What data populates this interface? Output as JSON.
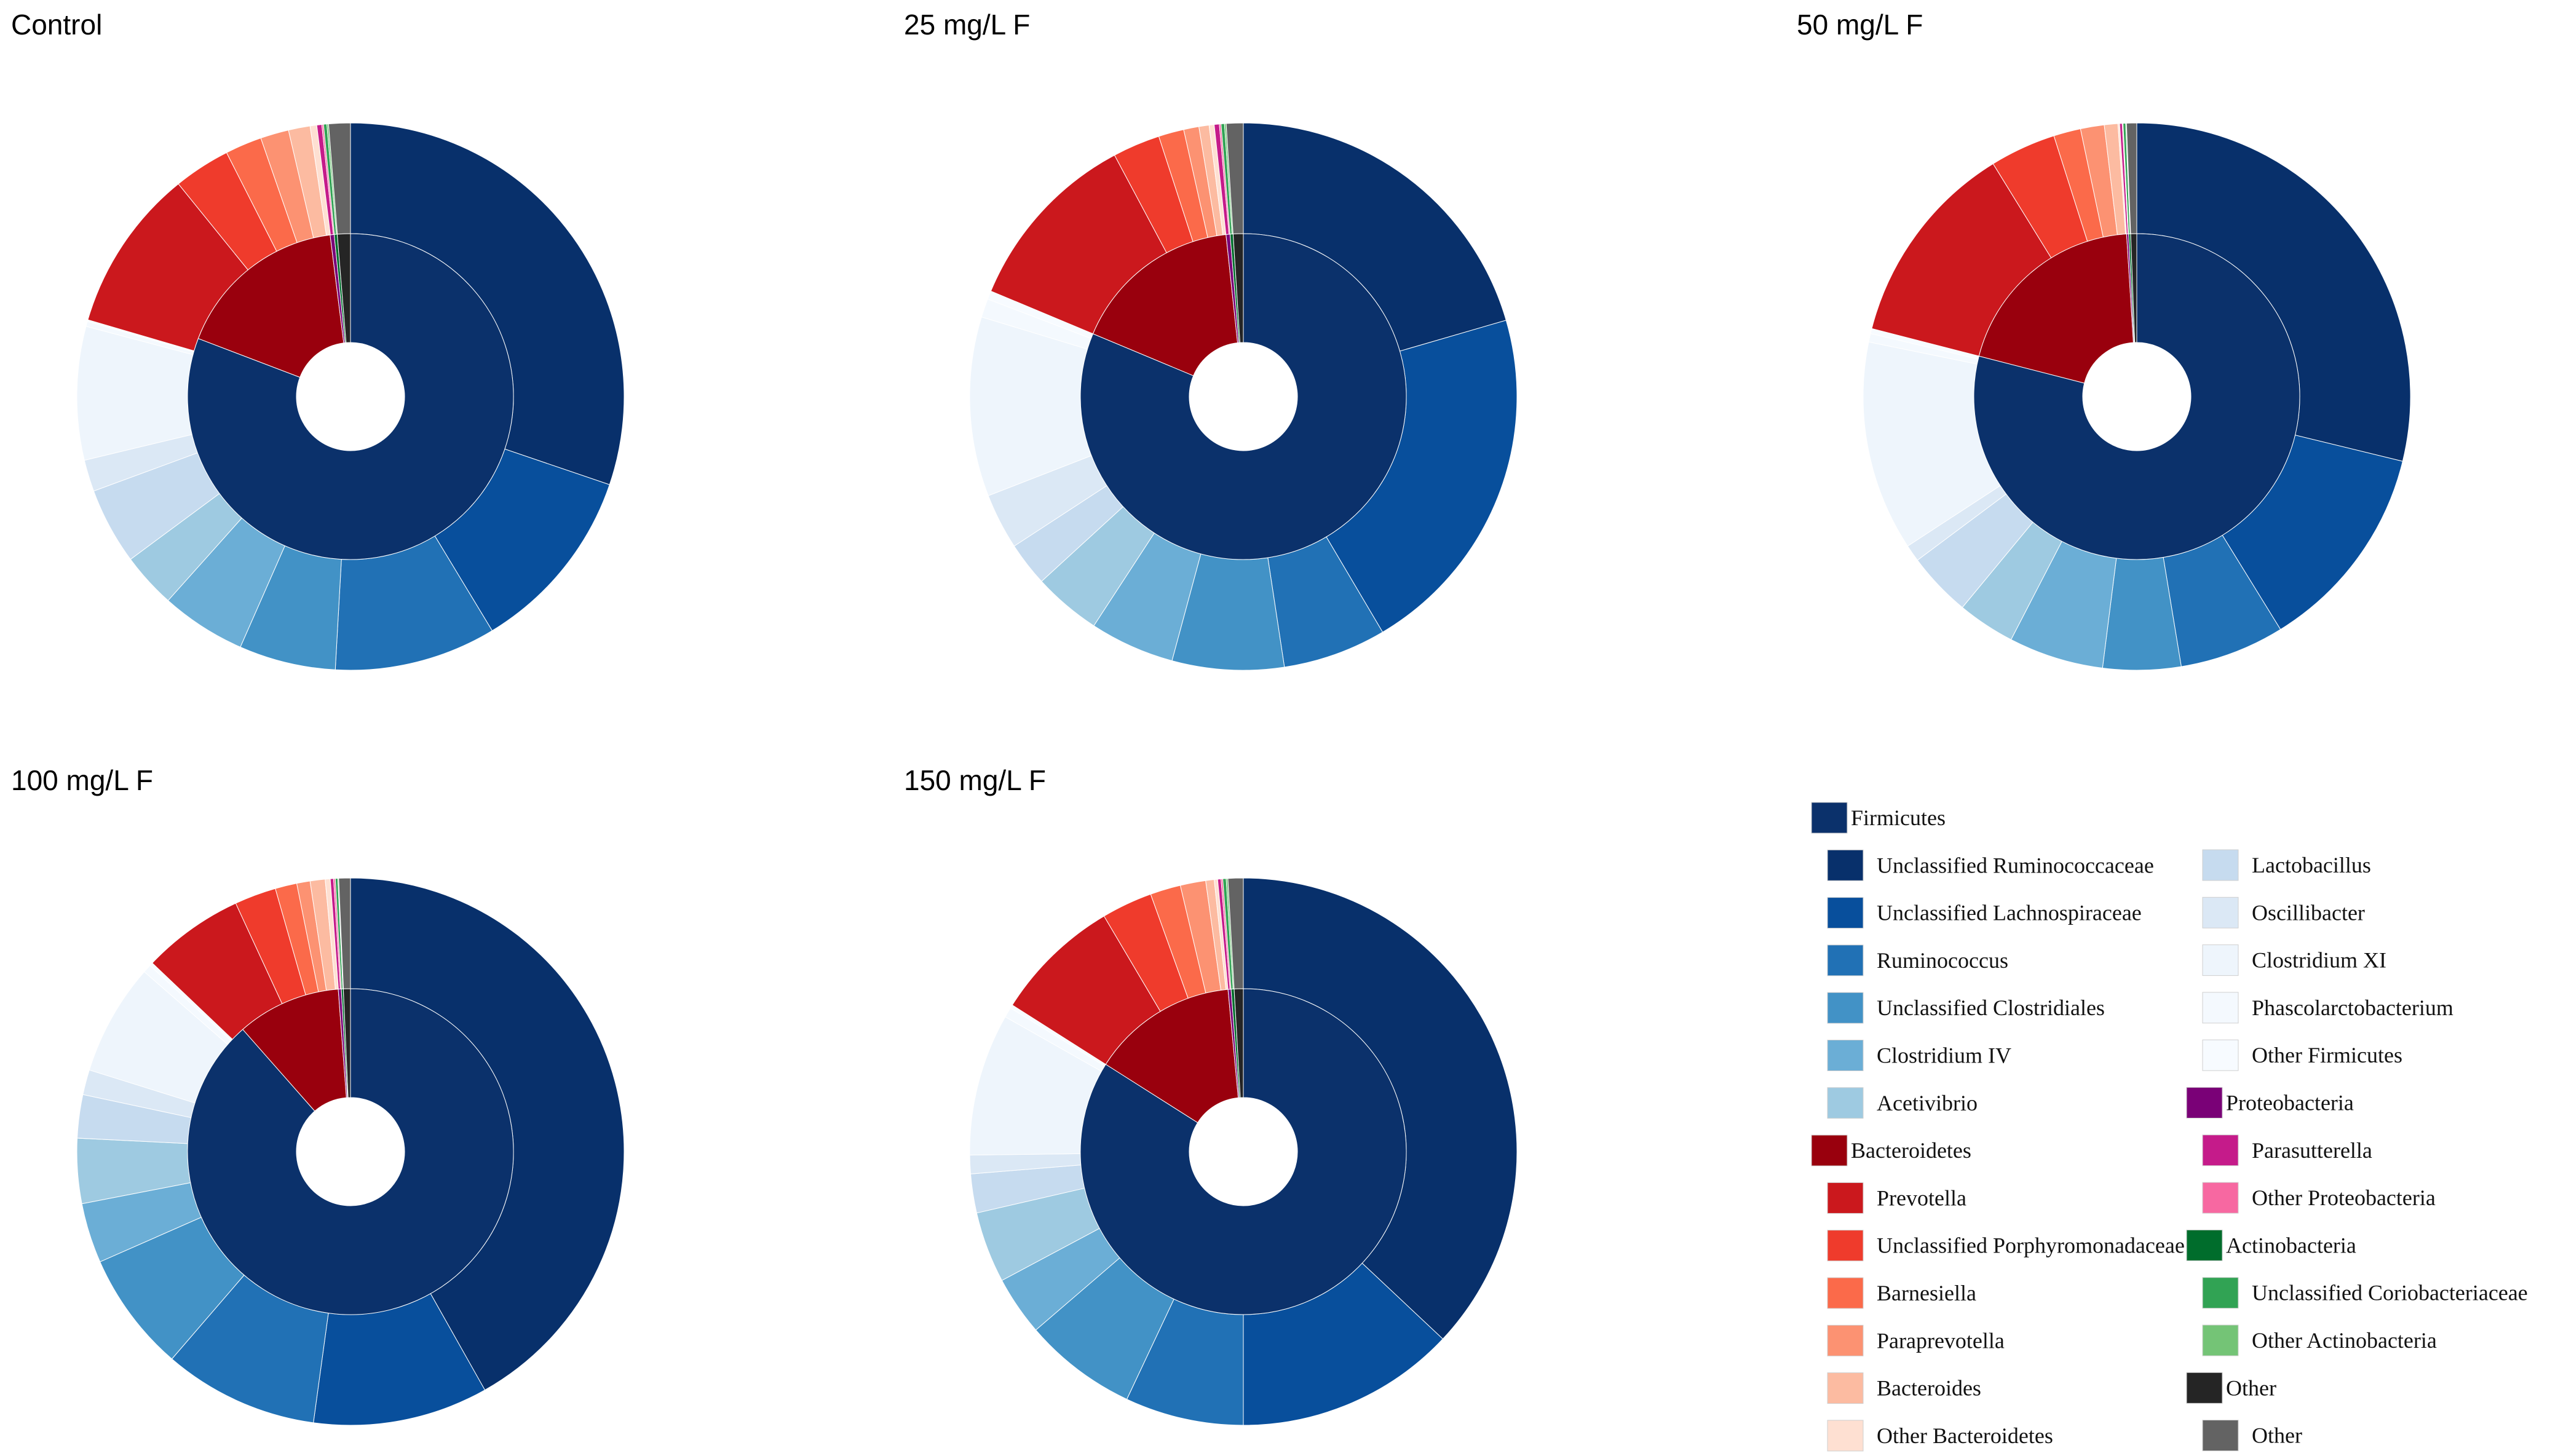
{
  "colors": {
    "Firmicutes": "#0b316b",
    "Unclassified Ruminococcaceae": "#08306b",
    "Unclassified Lachnospiraceae": "#084f9c",
    "Ruminococcus": "#2171b5",
    "Unclassified Clostridiales": "#4292c6",
    "Clostridium IV": "#6baed6",
    "Acetivibrio": "#9ecae1",
    "Lactobacillus": "#c6dbef",
    "Oscillibacter": "#dbe8f5",
    "Clostridium XI": "#eef5fc",
    "Phascolarctobacterium": "#f4f9fe",
    "Other Firmicutes": "#f7fbff",
    "Bacteroidetes": "#99000d",
    "Prevotella": "#cb181d",
    "Unclassified Porphyromonadaceae": "#ef3b2c",
    "Barnesiella": "#fb6a4a",
    "Paraprevotella": "#fc9272",
    "Bacteroides": "#fcbba1",
    "Other Bacteroidetes": "#fee0d2",
    "Proteobacteria": "#7a0177",
    "Parasutterella": "#c51b8a",
    "Other Proteobacteria": "#f768a1",
    "Actinobacteria": "#006d2c",
    "Unclassified Coriobacteriaceae": "#31a354",
    "Other Actinobacteria": "#74c476",
    "Other phylum": "#252525",
    "Other genus": "#636363"
  },
  "chart_data": [
    {
      "type": "pie",
      "title": "Control",
      "inner": [
        {
          "name": "Firmicutes",
          "value": 80.8
        },
        {
          "name": "Bacteroidetes",
          "value": 17.2
        },
        {
          "name": "Proteobacteria",
          "value": 0.4
        },
        {
          "name": "Actinobacteria",
          "value": 0.3
        },
        {
          "name": "Other",
          "value": 1.3
        }
      ],
      "outer": [
        {
          "name": "Unclassified Ruminococcaceae",
          "value": 30.7
        },
        {
          "name": "Unclassified Lachnospiraceae",
          "value": 11.3
        },
        {
          "name": "Ruminococcus",
          "value": 9.7
        },
        {
          "name": "Unclassified Clostridiales",
          "value": 5.8
        },
        {
          "name": "Clostridium IV",
          "value": 5.1
        },
        {
          "name": "Acetivibrio",
          "value": 3.3
        },
        {
          "name": "Lactobacillus",
          "value": 4.6
        },
        {
          "name": "Oscillibacter",
          "value": 1.9
        },
        {
          "name": "Clostridium XI",
          "value": 8.0
        },
        {
          "name": "Phascolarctobacterium",
          "value": 0.3
        },
        {
          "name": "Other Firmicutes",
          "value": 0.1
        },
        {
          "name": "Prevotella",
          "value": 9.8
        },
        {
          "name": "Unclassified Porphyromonadaceae",
          "value": 3.4
        },
        {
          "name": "Barnesiella",
          "value": 2.2
        },
        {
          "name": "Paraprevotella",
          "value": 1.7
        },
        {
          "name": "Bacteroides",
          "value": 1.3
        },
        {
          "name": "Other Bacteroidetes",
          "value": 0.4
        },
        {
          "name": "Parasutterella",
          "value": 0.3
        },
        {
          "name": "Other Proteobacteria",
          "value": 0.1
        },
        {
          "name": "Unclassified Coriobacteriaceae",
          "value": 0.2
        },
        {
          "name": "Other Actinobacteria",
          "value": 0.1
        },
        {
          "name": "Other",
          "value": 1.3
        }
      ]
    },
    {
      "type": "pie",
      "title": "25 mg/L F",
      "inner": [
        {
          "name": "Firmicutes",
          "value": 81.3
        },
        {
          "name": "Bacteroidetes",
          "value": 17.0
        },
        {
          "name": "Proteobacteria",
          "value": 0.4
        },
        {
          "name": "Actinobacteria",
          "value": 0.3
        },
        {
          "name": "Other",
          "value": 1.0
        }
      ],
      "outer": [
        {
          "name": "Unclassified Ruminococcaceae",
          "value": 20.5
        },
        {
          "name": "Unclassified Lachnospiraceae",
          "value": 21.0
        },
        {
          "name": "Ruminococcus",
          "value": 6.1
        },
        {
          "name": "Unclassified Clostridiales",
          "value": 6.6
        },
        {
          "name": "Clostridium IV",
          "value": 5.0
        },
        {
          "name": "Acetivibrio",
          "value": 4.0
        },
        {
          "name": "Lactobacillus",
          "value": 2.6
        },
        {
          "name": "Oscillibacter",
          "value": 3.3
        },
        {
          "name": "Clostridium XI",
          "value": 10.6
        },
        {
          "name": "Phascolarctobacterium",
          "value": 1.1
        },
        {
          "name": "Other Firmicutes",
          "value": 0.5
        },
        {
          "name": "Prevotella",
          "value": 10.9
        },
        {
          "name": "Unclassified Porphyromonadaceae",
          "value": 2.8
        },
        {
          "name": "Barnesiella",
          "value": 1.5
        },
        {
          "name": "Paraprevotella",
          "value": 0.9
        },
        {
          "name": "Bacteroides",
          "value": 0.6
        },
        {
          "name": "Other Bacteroidetes",
          "value": 0.3
        },
        {
          "name": "Parasutterella",
          "value": 0.3
        },
        {
          "name": "Other Proteobacteria",
          "value": 0.1
        },
        {
          "name": "Unclassified Coriobacteriaceae",
          "value": 0.2
        },
        {
          "name": "Other Actinobacteria",
          "value": 0.1
        },
        {
          "name": "Other",
          "value": 1.0
        }
      ]
    },
    {
      "type": "pie",
      "title": "50 mg/L F",
      "inner": [
        {
          "name": "Firmicutes",
          "value": 79.0
        },
        {
          "name": "Bacteroidetes",
          "value": 20.0
        },
        {
          "name": "Proteobacteria",
          "value": 0.2
        },
        {
          "name": "Actinobacteria",
          "value": 0.2
        },
        {
          "name": "Other",
          "value": 0.6
        }
      ],
      "outer": [
        {
          "name": "Unclassified Ruminococcaceae",
          "value": 28.8
        },
        {
          "name": "Unclassified Lachnospiraceae",
          "value": 12.4
        },
        {
          "name": "Ruminococcus",
          "value": 6.2
        },
        {
          "name": "Unclassified Clostridiales",
          "value": 4.6
        },
        {
          "name": "Clostridium IV",
          "value": 5.6
        },
        {
          "name": "Acetivibrio",
          "value": 3.4
        },
        {
          "name": "Lactobacillus",
          "value": 3.8
        },
        {
          "name": "Oscillibacter",
          "value": 1.0
        },
        {
          "name": "Clostridium XI",
          "value": 12.4
        },
        {
          "name": "Phascolarctobacterium",
          "value": 0.5
        },
        {
          "name": "Other Firmicutes",
          "value": 0.3
        },
        {
          "name": "Prevotella",
          "value": 12.2
        },
        {
          "name": "Unclassified Porphyromonadaceae",
          "value": 3.9
        },
        {
          "name": "Barnesiella",
          "value": 1.6
        },
        {
          "name": "Paraprevotella",
          "value": 1.4
        },
        {
          "name": "Bacteroides",
          "value": 0.8
        },
        {
          "name": "Other Bacteroidetes",
          "value": 0.1
        },
        {
          "name": "Parasutterella",
          "value": 0.15
        },
        {
          "name": "Other Proteobacteria",
          "value": 0.05
        },
        {
          "name": "Unclassified Coriobacteriaceae",
          "value": 0.15
        },
        {
          "name": "Other Actinobacteria",
          "value": 0.05
        },
        {
          "name": "Other",
          "value": 0.6
        }
      ]
    },
    {
      "type": "pie",
      "title": "100 mg/L F",
      "inner": [
        {
          "name": "Firmicutes",
          "value": 88.5
        },
        {
          "name": "Bacteroidetes",
          "value": 10.3
        },
        {
          "name": "Proteobacteria",
          "value": 0.3
        },
        {
          "name": "Actinobacteria",
          "value": 0.2
        },
        {
          "name": "Other",
          "value": 0.7
        }
      ],
      "outer": [
        {
          "name": "Unclassified Ruminococcaceae",
          "value": 42.5
        },
        {
          "name": "Unclassified Lachnospiraceae",
          "value": 10.5
        },
        {
          "name": "Ruminococcus",
          "value": 9.3
        },
        {
          "name": "Unclassified Clostridiales",
          "value": 7.2
        },
        {
          "name": "Clostridium IV",
          "value": 3.6
        },
        {
          "name": "Acetivibrio",
          "value": 3.9
        },
        {
          "name": "Lactobacillus",
          "value": 2.6
        },
        {
          "name": "Oscillibacter",
          "value": 1.5
        },
        {
          "name": "Clostridium XI",
          "value": 6.7
        },
        {
          "name": "Phascolarctobacterium",
          "value": 0.5
        },
        {
          "name": "Other Firmicutes",
          "value": 0.2
        },
        {
          "name": "Prevotella",
          "value": 6.1
        },
        {
          "name": "Unclassified Porphyromonadaceae",
          "value": 2.5
        },
        {
          "name": "Barnesiella",
          "value": 1.3
        },
        {
          "name": "Paraprevotella",
          "value": 0.8
        },
        {
          "name": "Bacteroides",
          "value": 0.9
        },
        {
          "name": "Other Bacteroidetes",
          "value": 0.3
        },
        {
          "name": "Parasutterella",
          "value": 0.2
        },
        {
          "name": "Other Proteobacteria",
          "value": 0.1
        },
        {
          "name": "Unclassified Coriobacteriaceae",
          "value": 0.15
        },
        {
          "name": "Other Actinobacteria",
          "value": 0.05
        },
        {
          "name": "Other",
          "value": 0.7
        }
      ]
    },
    {
      "type": "pie",
      "title": "150 mg/L F",
      "inner": [
        {
          "name": "Firmicutes",
          "value": 84.0
        },
        {
          "name": "Bacteroidetes",
          "value": 14.5
        },
        {
          "name": "Proteobacteria",
          "value": 0.3
        },
        {
          "name": "Actinobacteria",
          "value": 0.3
        },
        {
          "name": "Other",
          "value": 0.9
        }
      ],
      "outer": [
        {
          "name": "Unclassified Ruminococcaceae",
          "value": 37.0
        },
        {
          "name": "Unclassified Lachnospiraceae",
          "value": 13.0
        },
        {
          "name": "Ruminococcus",
          "value": 7.0
        },
        {
          "name": "Unclassified Clostridiales",
          "value": 6.7
        },
        {
          "name": "Clostridium IV",
          "value": 3.5
        },
        {
          "name": "Acetivibrio",
          "value": 4.2
        },
        {
          "name": "Lactobacillus",
          "value": 2.3
        },
        {
          "name": "Oscillibacter",
          "value": 1.1
        },
        {
          "name": "Clostridium XI",
          "value": 8.4
        },
        {
          "name": "Phascolarctobacterium",
          "value": 0.6
        },
        {
          "name": "Other Firmicutes",
          "value": 0.2
        },
        {
          "name": "Prevotella",
          "value": 7.5
        },
        {
          "name": "Unclassified Porphyromonadaceae",
          "value": 3.0
        },
        {
          "name": "Barnesiella",
          "value": 1.8
        },
        {
          "name": "Paraprevotella",
          "value": 1.5
        },
        {
          "name": "Bacteroides",
          "value": 0.5
        },
        {
          "name": "Other Bacteroidetes",
          "value": 0.2
        },
        {
          "name": "Parasutterella",
          "value": 0.2
        },
        {
          "name": "Other Proteobacteria",
          "value": 0.1
        },
        {
          "name": "Unclassified Coriobacteriaceae",
          "value": 0.2
        },
        {
          "name": "Other Actinobacteria",
          "value": 0.1
        },
        {
          "name": "Other",
          "value": 0.9
        }
      ]
    }
  ],
  "legend": {
    "col1": [
      {
        "label": "Firmicutes",
        "key": "Firmicutes",
        "level": "phylum"
      },
      {
        "label": "Unclassified Ruminococcaceae",
        "key": "Unclassified Ruminococcaceae",
        "level": "genus"
      },
      {
        "label": "Unclassified Lachnospiraceae",
        "key": "Unclassified Lachnospiraceae",
        "level": "genus"
      },
      {
        "label": "Ruminococcus",
        "key": "Ruminococcus",
        "level": "genus"
      },
      {
        "label": "Unclassified Clostridiales",
        "key": "Unclassified Clostridiales",
        "level": "genus"
      },
      {
        "label": "Clostridium IV",
        "key": "Clostridium IV",
        "level": "genus"
      },
      {
        "label": "Acetivibrio",
        "key": "Acetivibrio",
        "level": "genus"
      },
      {
        "label": "Bacteroidetes",
        "key": "Bacteroidetes",
        "level": "phylum"
      },
      {
        "label": "Prevotella",
        "key": "Prevotella",
        "level": "genus"
      },
      {
        "label": "Unclassified Porphyromonadaceae",
        "key": "Unclassified Porphyromonadaceae",
        "level": "genus"
      },
      {
        "label": "Barnesiella",
        "key": "Barnesiella",
        "level": "genus"
      },
      {
        "label": "Paraprevotella",
        "key": "Paraprevotella",
        "level": "genus"
      },
      {
        "label": "Bacteroides",
        "key": "Bacteroides",
        "level": "genus"
      },
      {
        "label": "Other Bacteroidetes",
        "key": "Other Bacteroidetes",
        "level": "genus"
      }
    ],
    "col2": [
      {
        "label": "Lactobacillus",
        "key": "Lactobacillus",
        "level": "genus"
      },
      {
        "label": "Oscillibacter",
        "key": "Oscillibacter",
        "level": "genus"
      },
      {
        "label": "Clostridium XI",
        "key": "Clostridium XI",
        "level": "genus"
      },
      {
        "label": "Phascolarctobacterium",
        "key": "Phascolarctobacterium",
        "level": "genus"
      },
      {
        "label": "Other Firmicutes",
        "key": "Other Firmicutes",
        "level": "genus"
      },
      {
        "label": "Proteobacteria",
        "key": "Proteobacteria",
        "level": "phylum"
      },
      {
        "label": "Parasutterella",
        "key": "Parasutterella",
        "level": "genus"
      },
      {
        "label": "Other Proteobacteria",
        "key": "Other Proteobacteria",
        "level": "genus"
      },
      {
        "label": "Actinobacteria",
        "key": "Actinobacteria",
        "level": "phylum"
      },
      {
        "label": "Unclassified Coriobacteriaceae",
        "key": "Unclassified Coriobacteriaceae",
        "level": "genus"
      },
      {
        "label": "Other Actinobacteria",
        "key": "Other Actinobacteria",
        "level": "genus"
      },
      {
        "label": "Other",
        "key": "Other phylum",
        "level": "phylum"
      },
      {
        "label": "Other",
        "key": "Other genus",
        "level": "genus"
      }
    ]
  }
}
